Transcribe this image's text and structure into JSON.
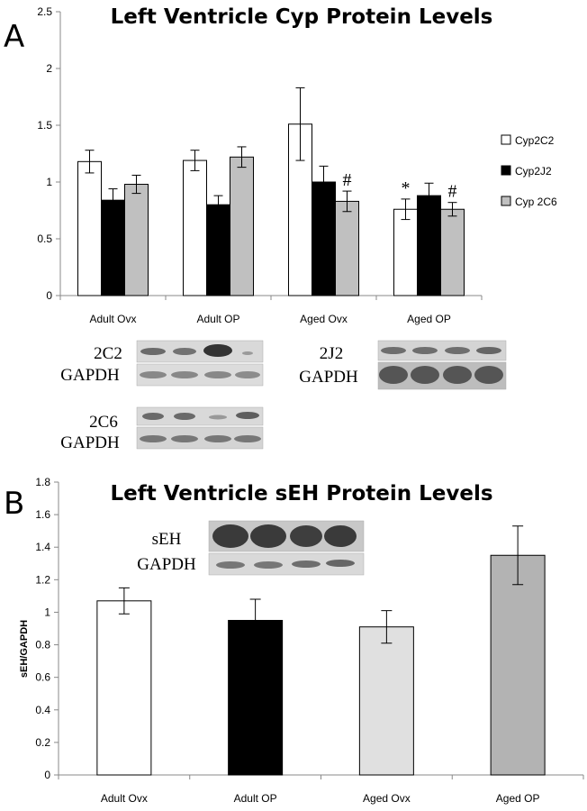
{
  "panels": {
    "a": {
      "letter": "A"
    },
    "b": {
      "letter": "B"
    }
  },
  "blots": {
    "a": [
      {
        "protein": "2C2",
        "loading": "GAPDH"
      },
      {
        "protein": "2J2",
        "loading": "GAPDH"
      },
      {
        "protein": "2C6",
        "loading": "GAPDH"
      }
    ],
    "b": [
      {
        "protein": "sEH",
        "loading": "GAPDH"
      }
    ]
  },
  "chart_data": [
    {
      "type": "bar",
      "title": "Left Ventricle Cyp Protein Levels",
      "xlabel": "",
      "ylabel": "",
      "categories": [
        "Adult Ovx",
        "Adult OP",
        "Aged Ovx",
        "Aged OP"
      ],
      "ylim": [
        0,
        2.5
      ],
      "yticks": [
        "0",
        "0.5",
        "1",
        "1.5",
        "2",
        "2.5"
      ],
      "legend_position": "right",
      "series": [
        {
          "name": "Cyp2C2",
          "color": "#ffffff",
          "values": [
            1.18,
            1.19,
            1.51,
            0.76
          ],
          "errors": [
            0.1,
            0.09,
            0.32,
            0.09
          ]
        },
        {
          "name": "Cyp2J2",
          "color": "#000000",
          "values": [
            0.84,
            0.8,
            1.0,
            0.88
          ],
          "errors": [
            0.1,
            0.08,
            0.14,
            0.11
          ]
        },
        {
          "name": "Cyp 2C6",
          "color": "#c0c0c0",
          "values": [
            0.98,
            1.22,
            0.83,
            0.76
          ],
          "errors": [
            0.08,
            0.09,
            0.09,
            0.06
          ]
        }
      ],
      "annotations": [
        {
          "text": "*",
          "category": "Aged OP",
          "series": "Cyp2C2"
        },
        {
          "text": "#",
          "category": "Aged Ovx",
          "series": "Cyp 2C6"
        },
        {
          "text": "#",
          "category": "Aged OP",
          "series": "Cyp 2C6"
        }
      ]
    },
    {
      "type": "bar",
      "title": "Left Ventricle sEH Protein Levels",
      "xlabel": "",
      "ylabel": "sEH/GAPDH",
      "categories": [
        "Adult Ovx",
        "Adult OP",
        "Aged Ovx",
        "Aged OP"
      ],
      "ylim": [
        0,
        1.8
      ],
      "yticks": [
        "0",
        "0.2",
        "0.4",
        "0.6",
        "0.8",
        "1",
        "1.2",
        "1.4",
        "1.6",
        "1.8"
      ],
      "values": [
        1.07,
        0.95,
        0.91,
        1.35
      ],
      "errors": [
        0.08,
        0.13,
        0.1,
        0.18
      ],
      "colors": [
        "#ffffff",
        "#000000",
        "#e0e0e0",
        "#b3b3b3"
      ]
    }
  ]
}
